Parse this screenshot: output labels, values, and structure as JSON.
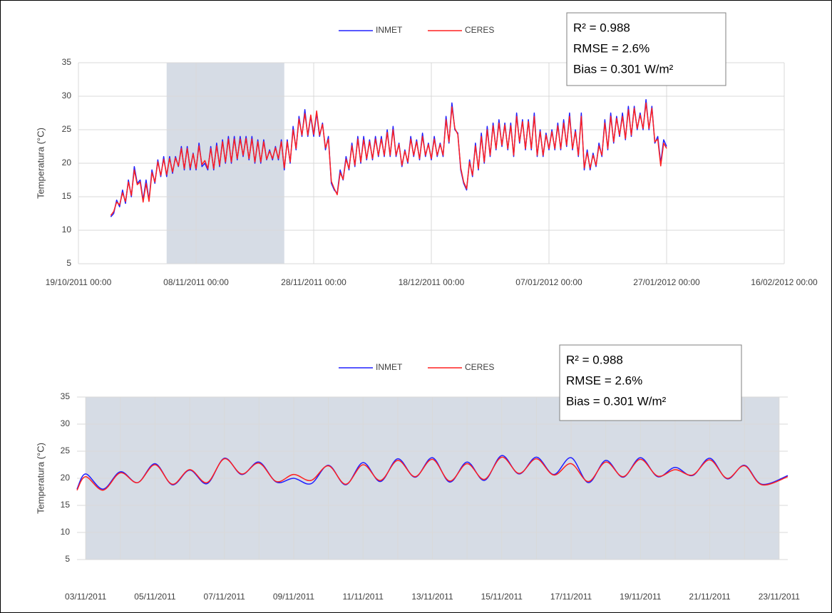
{
  "chart_data": [
    {
      "type": "line",
      "ylabel": "Temperatura (°C)",
      "xlim": [
        "19/10/2011 00:00",
        "16/02/2012 00:00"
      ],
      "xticks": [
        "19/10/2011 00:00",
        "08/11/2011 00:00",
        "28/11/2011 00:00",
        "18/12/2011 00:00",
        "07/01/2012 00:00",
        "27/01/2012 00:00",
        "16/02/2012 00:00"
      ],
      "ylim": [
        5,
        35
      ],
      "yticks": [
        5,
        10,
        15,
        20,
        25,
        30,
        35
      ],
      "grid": true,
      "legend": "top",
      "highlight": [
        "03/11/2011 00:00",
        "23/11/2011 00:00"
      ],
      "annotations": [
        "R² = 0.988",
        "RMSE = 2.6%",
        "Bias = 0.301 W/m²"
      ],
      "x": [
        "24/10/2011 12:00",
        "25/10/2011 00:00",
        "25/10/2011 12:00",
        "26/10/2011 00:00",
        "26/10/2011 12:00",
        "27/10/2011 00:00",
        "27/10/2011 12:00",
        "28/10/2011 00:00",
        "28/10/2011 12:00",
        "29/10/2011 00:00",
        "29/10/2011 12:00",
        "30/10/2011 00:00",
        "30/10/2011 12:00",
        "31/10/2011 00:00",
        "31/10/2011 12:00",
        "01/11/2011 00:00",
        "01/11/2011 12:00",
        "02/11/2011 00:00",
        "02/11/2011 12:00",
        "03/11/2011 00:00",
        "03/11/2011 12:00",
        "04/11/2011 00:00",
        "04/11/2011 12:00",
        "05/11/2011 00:00",
        "05/11/2011 12:00",
        "06/11/2011 00:00",
        "06/11/2011 12:00",
        "07/11/2011 00:00",
        "07/11/2011 12:00",
        "08/11/2011 00:00",
        "08/11/2011 12:00",
        "09/11/2011 00:00",
        "09/11/2011 12:00",
        "10/11/2011 00:00",
        "10/11/2011 12:00",
        "11/11/2011 00:00",
        "11/11/2011 12:00",
        "12/11/2011 00:00",
        "12/11/2011 12:00",
        "13/11/2011 00:00",
        "13/11/2011 12:00",
        "14/11/2011 00:00",
        "14/11/2011 12:00",
        "15/11/2011 00:00",
        "15/11/2011 12:00",
        "16/11/2011 00:00",
        "16/11/2011 12:00",
        "17/11/2011 00:00",
        "17/11/2011 12:00",
        "18/11/2011 00:00",
        "18/11/2011 12:00",
        "19/11/2011 00:00",
        "19/11/2011 12:00",
        "20/11/2011 00:00",
        "20/11/2011 12:00",
        "21/11/2011 00:00",
        "21/11/2011 12:00",
        "22/11/2011 00:00",
        "22/11/2011 12:00",
        "23/11/2011 00:00",
        "23/11/2011 12:00",
        "24/11/2011 00:00",
        "24/11/2011 12:00",
        "25/11/2011 00:00",
        "25/11/2011 12:00",
        "26/11/2011 00:00",
        "26/11/2011 12:00",
        "27/11/2011 00:00",
        "27/11/2011 12:00",
        "28/11/2011 00:00",
        "28/11/2011 12:00",
        "29/11/2011 00:00",
        "29/11/2011 12:00",
        "30/11/2011 00:00",
        "30/11/2011 12:00",
        "01/12/2011 00:00",
        "01/12/2011 12:00",
        "02/12/2011 00:00",
        "02/12/2011 12:00",
        "03/12/2011 00:00",
        "03/12/2011 12:00",
        "04/12/2011 00:00",
        "04/12/2011 12:00",
        "05/12/2011 00:00",
        "05/12/2011 12:00",
        "06/12/2011 00:00",
        "06/12/2011 12:00",
        "07/12/2011 00:00",
        "07/12/2011 12:00",
        "08/12/2011 00:00",
        "08/12/2011 12:00",
        "09/12/2011 00:00",
        "09/12/2011 12:00",
        "10/12/2011 00:00",
        "10/12/2011 12:00",
        "11/12/2011 00:00",
        "11/12/2011 12:00",
        "12/12/2011 00:00",
        "12/12/2011 12:00",
        "13/12/2011 00:00",
        "13/12/2011 12:00",
        "14/12/2011 00:00",
        "14/12/2011 12:00",
        "15/12/2011 00:00",
        "15/12/2011 12:00",
        "16/12/2011 00:00",
        "16/12/2011 12:00",
        "17/12/2011 00:00",
        "17/12/2011 12:00",
        "18/12/2011 00:00",
        "18/12/2011 12:00",
        "19/12/2011 00:00",
        "19/12/2011 12:00",
        "20/12/2011 00:00",
        "20/12/2011 12:00",
        "21/12/2011 00:00",
        "21/12/2011 12:00",
        "22/12/2011 00:00",
        "22/12/2011 12:00",
        "23/12/2011 00:00",
        "23/12/2011 12:00",
        "24/12/2011 00:00",
        "24/12/2011 12:00",
        "25/12/2011 00:00",
        "25/12/2011 12:00",
        "26/12/2011 00:00",
        "26/12/2011 12:00",
        "27/12/2011 00:00",
        "27/12/2011 12:00",
        "28/12/2011 00:00",
        "28/12/2011 12:00",
        "29/12/2011 00:00",
        "29/12/2011 12:00",
        "30/12/2011 00:00",
        "30/12/2011 12:00",
        "31/12/2011 00:00",
        "31/12/2011 12:00",
        "01/01/2012 00:00",
        "01/01/2012 12:00",
        "02/01/2012 00:00",
        "02/01/2012 12:00",
        "03/01/2012 00:00",
        "03/01/2012 12:00",
        "04/01/2012 00:00",
        "04/01/2012 12:00",
        "05/01/2012 00:00",
        "05/01/2012 12:00",
        "06/01/2012 00:00",
        "06/01/2012 12:00",
        "07/01/2012 00:00",
        "07/01/2012 12:00",
        "08/01/2012 00:00",
        "08/01/2012 12:00",
        "09/01/2012 00:00",
        "09/01/2012 12:00",
        "10/01/2012 00:00",
        "10/01/2012 12:00",
        "11/01/2012 00:00",
        "11/01/2012 12:00",
        "12/01/2012 00:00",
        "12/01/2012 12:00",
        "13/01/2012 00:00",
        "13/01/2012 12:00",
        "14/01/2012 00:00",
        "14/01/2012 12:00",
        "15/01/2012 00:00",
        "15/01/2012 12:00",
        "16/01/2012 00:00",
        "16/01/2012 12:00",
        "17/01/2012 00:00",
        "17/01/2012 12:00",
        "18/01/2012 00:00",
        "18/01/2012 12:00",
        "19/01/2012 00:00",
        "19/01/2012 12:00",
        "20/01/2012 00:00",
        "20/01/2012 12:00",
        "21/01/2012 00:00",
        "21/01/2012 12:00",
        "22/01/2012 00:00",
        "22/01/2012 12:00",
        "23/01/2012 00:00",
        "23/01/2012 12:00",
        "24/01/2012 00:00",
        "24/01/2012 12:00",
        "25/01/2012 00:00",
        "25/01/2012 12:00",
        "26/01/2012 00:00",
        "26/01/2012 12:00",
        "27/01/2012 00:00"
      ],
      "series": [
        {
          "name": "INMET",
          "color": "#2020ff",
          "values": [
            12,
            12.5,
            14.5,
            13.5,
            16,
            14,
            17.5,
            15,
            19.5,
            17,
            17.5,
            14.5,
            17.5,
            14.5,
            19,
            17,
            20.5,
            18,
            21,
            18,
            21,
            18.5,
            21,
            19.5,
            22.5,
            19,
            22.5,
            19,
            21.5,
            19,
            23,
            19.5,
            20,
            19,
            22.5,
            19,
            23,
            19.5,
            23.5,
            20,
            24,
            20,
            24,
            20.5,
            24,
            21,
            24,
            20.5,
            24,
            20,
            23.5,
            20,
            23.5,
            20.5,
            22,
            20.5,
            22.5,
            20.5,
            23.5,
            19,
            23.5,
            20,
            25.5,
            22,
            27,
            24,
            28,
            24,
            27,
            24,
            27.5,
            24,
            26,
            22,
            24,
            17,
            16,
            15.5,
            19,
            17.5,
            21,
            19,
            23,
            19.5,
            24,
            20,
            24,
            20.5,
            23.5,
            20.5,
            24,
            21,
            24,
            21,
            25,
            21,
            25.5,
            21,
            23,
            19.5,
            22,
            20,
            24,
            21,
            23.5,
            20.5,
            24.5,
            21,
            23,
            20.5,
            24,
            21,
            23,
            21,
            27,
            23,
            29,
            25,
            24.5,
            19,
            17,
            16,
            20.5,
            18,
            23,
            19,
            24.5,
            20,
            25.5,
            21,
            26,
            22,
            26.5,
            22.5,
            26,
            22,
            26,
            21,
            27.5,
            23,
            26.5,
            22,
            26.5,
            22,
            27.5,
            21,
            25,
            21,
            24.5,
            22,
            25,
            22,
            26,
            22,
            26.5,
            22.5,
            27.5,
            22,
            25,
            21,
            27.5,
            19,
            22,
            19,
            21.5,
            19.5,
            23,
            21,
            26.5,
            22,
            27.5,
            23,
            27,
            24,
            27.5,
            23.5,
            28.5,
            24,
            28.5,
            25,
            27.5,
            25,
            29.5,
            25,
            28.5,
            23,
            24,
            20,
            23.5,
            22.5
          ]
        },
        {
          "name": "CERES",
          "color": "#ff2020",
          "values": [
            12.2,
            12.8,
            14.2,
            13.8,
            15.6,
            14.3,
            17.2,
            15.2,
            19,
            16.8,
            17.2,
            14.2,
            17,
            14.3,
            18.6,
            17.2,
            20.2,
            18.2,
            20.6,
            18.3,
            20.7,
            18.7,
            20.8,
            19.6,
            22.2,
            19.2,
            22.2,
            19.3,
            21.4,
            19.2,
            22.6,
            19.8,
            20.4,
            19.2,
            22.2,
            19.2,
            22.6,
            19.7,
            23.2,
            20.2,
            23.6,
            20.2,
            23.6,
            20.7,
            23.6,
            21.2,
            23.7,
            20.7,
            23.6,
            20.2,
            23.2,
            20.2,
            23.2,
            20.6,
            21.8,
            20.7,
            22.3,
            20.7,
            23.2,
            19.3,
            23.2,
            20.2,
            25,
            22.2,
            26.6,
            24.2,
            27.4,
            24.2,
            27.2,
            24.3,
            27.8,
            24.2,
            25.8,
            22.3,
            23.6,
            17.3,
            16.2,
            15.3,
            18.6,
            17.6,
            20.6,
            19.2,
            22.6,
            19.7,
            23.6,
            20.2,
            23.5,
            20.7,
            23.2,
            20.7,
            23.6,
            21.2,
            23.6,
            21.2,
            24.6,
            21.2,
            25,
            21.2,
            22.8,
            19.7,
            21.8,
            20.2,
            23.6,
            21.2,
            23.2,
            20.7,
            24,
            21.2,
            22.8,
            20.7,
            23.6,
            21.2,
            22.8,
            21.2,
            26.5,
            23.2,
            28.4,
            25.2,
            24.3,
            19.3,
            17.2,
            16.2,
            20.2,
            18.2,
            22.6,
            19.2,
            24,
            20.2,
            25,
            21.2,
            25.6,
            22.2,
            26,
            22.7,
            25.7,
            22.2,
            25.6,
            21.2,
            27,
            23.2,
            26.2,
            22.2,
            26.2,
            22.2,
            27,
            21.2,
            24.7,
            21.2,
            24.2,
            22.2,
            24.7,
            22.2,
            25.6,
            22.2,
            26,
            22.7,
            27,
            22.2,
            24.7,
            21.2,
            27,
            19.3,
            21.6,
            19.3,
            21.2,
            19.7,
            22.6,
            21.2,
            26,
            22.2,
            27,
            23.2,
            26.7,
            24.2,
            27,
            23.7,
            28,
            24.2,
            28.2,
            25.2,
            27.2,
            25.2,
            29,
            25.2,
            28.2,
            23.2,
            23.6,
            19.6,
            23,
            22.2
          ]
        }
      ]
    },
    {
      "type": "line",
      "ylabel": "Temperatura (°C)",
      "xlim": [
        "02/11/2011 18:00",
        "23/11/2011 06:00"
      ],
      "xticks": [
        "03/11/2011",
        "05/11/2011",
        "07/11/2011",
        "09/11/2011",
        "11/11/2011",
        "13/11/2011",
        "15/11/2011",
        "17/11/2011",
        "19/11/2011",
        "21/11/2011",
        "23/11/2011"
      ],
      "xminorticks": [
        "04/11/2011",
        "06/11/2011",
        "08/11/2011",
        "10/11/2011",
        "12/11/2011",
        "14/11/2011",
        "16/11/2011",
        "18/11/2011",
        "20/11/2011",
        "22/11/2011"
      ],
      "ylim": [
        5,
        35
      ],
      "yticks": [
        5,
        10,
        15,
        20,
        25,
        30,
        35
      ],
      "grid": true,
      "legend": "top",
      "smooth": true,
      "highlight": [
        "03/11/2011 00:00",
        "23/11/2011 00:00"
      ],
      "annotations": [
        "R² = 0.988",
        "RMSE = 2.6%",
        "Bias = 0.301 W/m²"
      ],
      "x": [
        "02/11/2011 18:00",
        "03/11/2011 00:00",
        "03/11/2011 12:00",
        "04/11/2011 00:00",
        "04/11/2011 12:00",
        "05/11/2011 00:00",
        "05/11/2011 12:00",
        "06/11/2011 00:00",
        "06/11/2011 12:00",
        "07/11/2011 00:00",
        "07/11/2011 12:00",
        "08/11/2011 00:00",
        "08/11/2011 12:00",
        "09/11/2011 00:00",
        "09/11/2011 12:00",
        "10/11/2011 00:00",
        "10/11/2011 12:00",
        "11/11/2011 00:00",
        "11/11/2011 12:00",
        "12/11/2011 00:00",
        "12/11/2011 12:00",
        "13/11/2011 00:00",
        "13/11/2011 12:00",
        "14/11/2011 00:00",
        "14/11/2011 12:00",
        "15/11/2011 00:00",
        "15/11/2011 12:00",
        "16/11/2011 00:00",
        "16/11/2011 12:00",
        "17/11/2011 00:00",
        "17/11/2011 12:00",
        "18/11/2011 00:00",
        "18/11/2011 12:00",
        "19/11/2011 00:00",
        "19/11/2011 12:00",
        "20/11/2011 00:00",
        "20/11/2011 12:00",
        "21/11/2011 00:00",
        "21/11/2011 12:00",
        "22/11/2011 00:00",
        "22/11/2011 12:00",
        "23/11/2011 06:00"
      ],
      "series": [
        {
          "name": "INMET",
          "color": "#2020ff",
          "values": [
            18.0,
            20.8,
            18.0,
            21.2,
            19.2,
            22.7,
            18.8,
            21.5,
            19.0,
            23.7,
            20.7,
            23.0,
            19.3,
            20.0,
            19.0,
            22.4,
            18.8,
            22.9,
            19.4,
            23.6,
            20.2,
            23.8,
            19.3,
            23.0,
            19.6,
            24.2,
            20.8,
            23.9,
            20.7,
            23.8,
            19.2,
            23.3,
            20.2,
            23.8,
            20.3,
            22.0,
            20.5,
            23.7,
            19.9,
            22.4,
            18.9,
            20.5
          ]
        },
        {
          "name": "CERES",
          "color": "#ff2020",
          "values": [
            17.8,
            20.3,
            17.8,
            21.0,
            19.2,
            22.5,
            18.9,
            21.6,
            19.2,
            23.6,
            20.8,
            22.8,
            19.4,
            20.7,
            19.6,
            22.3,
            18.9,
            22.5,
            19.6,
            23.3,
            20.3,
            23.5,
            19.5,
            22.7,
            19.8,
            23.9,
            20.9,
            23.6,
            20.6,
            22.7,
            19.4,
            23.0,
            20.3,
            23.5,
            20.4,
            21.6,
            20.6,
            23.4,
            20.0,
            22.3,
            18.8,
            20.3
          ]
        }
      ]
    }
  ]
}
